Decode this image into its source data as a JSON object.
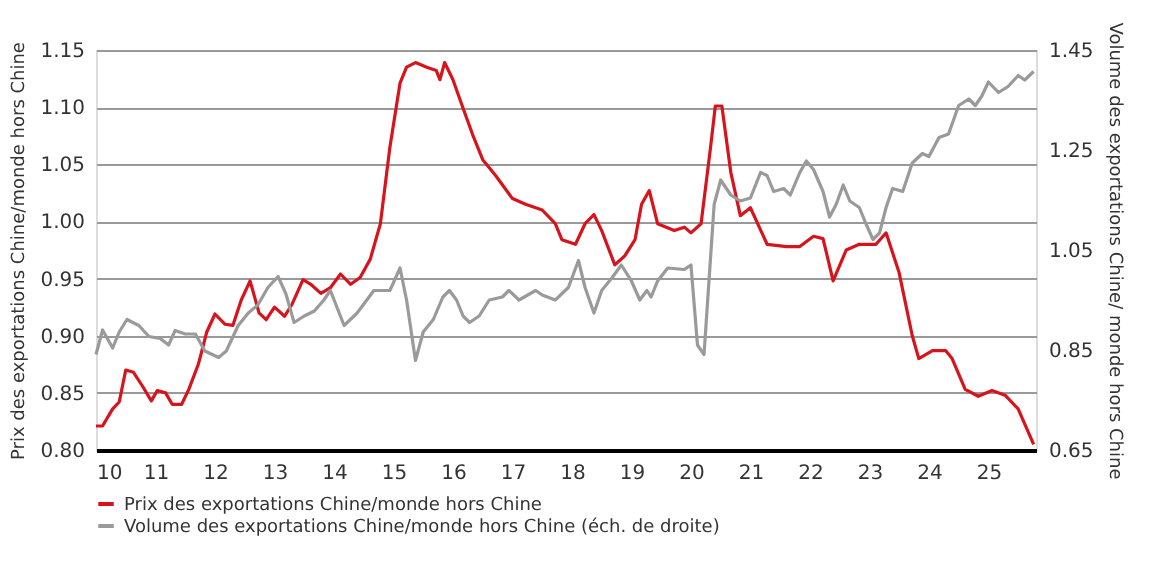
{
  "chart_data": {
    "type": "line",
    "ylabel": "Prix des exportations Chine/monde hors Chine",
    "y2label": "Volume des exportations Chine/ monde hors Chine",
    "xlim": [
      10,
      25.8
    ],
    "xticks": [
      10,
      11,
      12,
      13,
      14,
      15,
      16,
      17,
      18,
      19,
      20,
      21,
      22,
      23,
      24,
      25
    ],
    "ylim": [
      0.8,
      1.15
    ],
    "yticks": [
      {
        "value": 0.8,
        "label": "0.80"
      },
      0.85,
      {
        "value": 0.9,
        "label": "0.90"
      },
      0.95,
      {
        "value": 1.0,
        "label": "1.00"
      },
      1.05,
      {
        "value": 1.1,
        "label": "1.10"
      },
      1.15
    ],
    "y2lim": [
      0.65,
      1.45
    ],
    "y2ticks": [
      0.65,
      0.85,
      1.05,
      1.25,
      1.45
    ],
    "grid": "y",
    "legend": "bottom",
    "line_style": "solid",
    "marker": "none",
    "series": [
      {
        "name": "Prix des exportations Chine/monde hors Chine",
        "color": "#d7141c",
        "x": [
          10.0,
          10.11,
          10.28,
          10.39,
          10.5,
          10.63,
          10.78,
          10.93,
          11.03,
          11.17,
          11.28,
          11.44,
          11.56,
          11.72,
          11.86,
          12.0,
          12.17,
          12.3,
          12.44,
          12.59,
          12.74,
          12.86,
          13.0,
          13.17,
          13.3,
          13.48,
          13.61,
          13.78,
          13.94,
          14.11,
          14.28,
          14.44,
          14.61,
          14.78,
          14.94,
          15.11,
          15.22,
          15.37,
          15.56,
          15.72,
          15.78,
          15.86,
          16.0,
          16.17,
          16.33,
          16.5,
          16.72,
          17.0,
          17.22,
          17.5,
          17.72,
          17.83,
          18.06,
          18.22,
          18.37,
          18.5,
          18.72,
          18.89,
          19.06,
          19.17,
          19.3,
          19.44,
          19.72,
          19.89,
          20.0,
          20.17,
          20.33,
          20.41,
          20.52,
          20.67,
          20.83,
          21.0,
          21.28,
          21.61,
          21.83,
          22.06,
          22.22,
          22.39,
          22.61,
          22.83,
          23.11,
          23.28,
          23.5,
          23.72,
          23.83,
          24.06,
          24.28,
          24.39,
          24.61,
          24.83,
          25.06,
          25.28,
          25.5,
          25.76
        ],
        "values": [
          0.821,
          0.821,
          0.836,
          0.842,
          0.87,
          0.868,
          0.856,
          0.843,
          0.852,
          0.85,
          0.84,
          0.84,
          0.853,
          0.875,
          0.903,
          0.919,
          0.91,
          0.909,
          0.931,
          0.948,
          0.92,
          0.914,
          0.925,
          0.917,
          0.928,
          0.949,
          0.945,
          0.937,
          0.942,
          0.954,
          0.945,
          0.951,
          0.967,
          0.998,
          1.065,
          1.121,
          1.135,
          1.139,
          1.135,
          1.132,
          1.124,
          1.139,
          1.124,
          1.099,
          1.076,
          1.054,
          1.04,
          1.02,
          1.015,
          1.01,
          0.998,
          0.984,
          0.98,
          0.998,
          1.006,
          0.992,
          0.962,
          0.97,
          0.984,
          1.015,
          1.027,
          0.998,
          0.992,
          0.995,
          0.99,
          0.998,
          1.065,
          1.101,
          1.101,
          1.043,
          1.005,
          1.012,
          0.98,
          0.978,
          0.978,
          0.987,
          0.985,
          0.948,
          0.975,
          0.98,
          0.98,
          0.99,
          0.955,
          0.9,
          0.88,
          0.887,
          0.887,
          0.88,
          0.853,
          0.847,
          0.852,
          0.848,
          0.836,
          0.805
        ]
      },
      {
        "name": "Volume des exportations Chine/monde hors Chine (éch. de droite)",
        "color": "#9a9a9a",
        "axis": "y2",
        "x": [
          10.0,
          10.11,
          10.28,
          10.39,
          10.52,
          10.72,
          10.89,
          11.08,
          11.22,
          11.33,
          11.5,
          11.67,
          11.83,
          12.06,
          12.19,
          12.39,
          12.56,
          12.72,
          12.89,
          13.06,
          13.19,
          13.33,
          13.5,
          13.67,
          13.83,
          13.94,
          14.17,
          14.39,
          14.67,
          14.94,
          15.11,
          15.22,
          15.37,
          15.5,
          15.67,
          15.83,
          15.94,
          16.06,
          16.17,
          16.28,
          16.44,
          16.61,
          16.83,
          16.94,
          17.11,
          17.39,
          17.5,
          17.72,
          17.94,
          18.11,
          18.22,
          18.37,
          18.5,
          18.67,
          18.83,
          19.0,
          19.14,
          19.26,
          19.33,
          19.44,
          19.61,
          19.89,
          20.0,
          20.11,
          20.22,
          20.39,
          20.5,
          20.67,
          20.83,
          21.0,
          21.17,
          21.28,
          21.39,
          21.56,
          21.67,
          21.83,
          21.94,
          22.06,
          22.22,
          22.33,
          22.44,
          22.56,
          22.67,
          22.83,
          22.94,
          23.06,
          23.17,
          23.28,
          23.39,
          23.56,
          23.72,
          23.89,
          24.0,
          24.17,
          24.33,
          24.5,
          24.67,
          24.78,
          24.89,
          25.0,
          25.17,
          25.33,
          25.5,
          25.61,
          25.76
        ],
        "values": [
          0.841,
          0.89,
          0.854,
          0.886,
          0.911,
          0.899,
          0.877,
          0.873,
          0.86,
          0.889,
          0.882,
          0.882,
          0.848,
          0.835,
          0.848,
          0.899,
          0.924,
          0.94,
          0.975,
          0.997,
          0.963,
          0.905,
          0.918,
          0.928,
          0.95,
          0.969,
          0.899,
          0.924,
          0.969,
          0.969,
          1.014,
          0.95,
          0.829,
          0.886,
          0.911,
          0.956,
          0.969,
          0.95,
          0.918,
          0.905,
          0.918,
          0.95,
          0.956,
          0.969,
          0.95,
          0.969,
          0.96,
          0.95,
          0.975,
          1.029,
          0.975,
          0.924,
          0.969,
          0.994,
          1.02,
          0.988,
          0.95,
          0.969,
          0.956,
          0.988,
          1.014,
          1.011,
          1.02,
          0.86,
          0.841,
          1.141,
          1.19,
          1.16,
          1.148,
          1.154,
          1.205,
          1.199,
          1.167,
          1.173,
          1.16,
          1.205,
          1.228,
          1.211,
          1.167,
          1.116,
          1.141,
          1.18,
          1.148,
          1.135,
          1.103,
          1.071,
          1.084,
          1.135,
          1.173,
          1.167,
          1.224,
          1.243,
          1.237,
          1.275,
          1.282,
          1.339,
          1.352,
          1.339,
          1.358,
          1.386,
          1.365,
          1.377,
          1.399,
          1.39,
          1.407
        ]
      }
    ]
  }
}
